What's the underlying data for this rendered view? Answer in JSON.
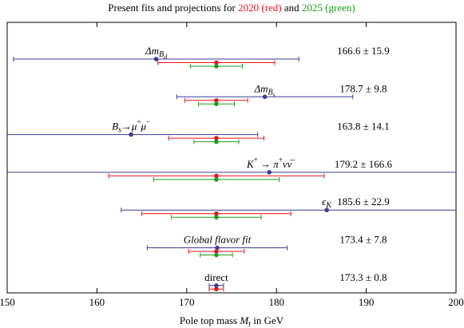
{
  "chart_data": {
    "type": "errorbar",
    "title": [
      {
        "text": "Present fits and projections for ",
        "color": "#000000"
      },
      {
        "text": "2020 (red)",
        "color": "#e8141c"
      },
      {
        "text": " and ",
        "color": "#000000"
      },
      {
        "text": "2025 (green)",
        "color": "#1a9e1a"
      }
    ],
    "categories": [
      [
        {
          "text": "Δm",
          "italic": true
        },
        {
          "text": "B",
          "italic": true,
          "shift": "sub"
        },
        {
          "text": "d",
          "italic": true,
          "shift": "subsub"
        }
      ],
      [
        {
          "text": "Δm",
          "italic": true
        },
        {
          "text": "B",
          "italic": true,
          "shift": "sub"
        },
        {
          "text": "s",
          "italic": true,
          "shift": "subsub"
        }
      ],
      [
        {
          "text": "B",
          "italic": true
        },
        {
          "text": "s",
          "italic": true,
          "shift": "sub"
        },
        {
          "text": "→μ",
          "italic": true
        },
        {
          "text": "+",
          "shift": "sup"
        },
        {
          "text": "μ",
          "italic": true
        },
        {
          "text": "−",
          "shift": "sup"
        }
      ],
      [
        {
          "text": "K",
          "italic": true
        },
        {
          "text": "+",
          "shift": "sup"
        },
        {
          "text": " → π",
          "italic": true
        },
        {
          "text": "+",
          "shift": "sup"
        },
        {
          "text": "νν̅",
          "italic": true
        }
      ],
      [
        {
          "text": "ϵ",
          "italic": true
        },
        {
          "text": "K",
          "italic": true,
          "shift": "sub"
        }
      ],
      [
        {
          "text": "Global flavor fit",
          "italic": true
        }
      ],
      [
        {
          "text": "direct"
        }
      ]
    ],
    "series": [
      {
        "color": "#3c3c9c",
        "values": [
          166.6,
          178.7,
          163.8,
          179.2,
          185.6,
          173.4,
          173.3
        ],
        "errors": [
          15.9,
          9.8,
          14.1,
          166.6,
          22.9,
          7.8,
          0.8
        ],
        "value_labels": [
          "166.6 ± 15.9",
          "178.7 ± 9.8",
          "163.8 ± 14.1",
          "179.2 ± 166.6",
          "185.6 ± 22.9",
          "173.4 ± 7.8",
          "173.3 ± 0.8"
        ]
      },
      {
        "color": "#e8141c",
        "values": [
          173.3,
          173.3,
          173.3,
          173.3,
          173.3,
          173.3,
          173.3
        ],
        "errors": [
          6.5,
          3.5,
          5.3,
          12,
          8.3,
          3.1,
          0.8
        ]
      },
      {
        "color": "#1a9e1a",
        "values": [
          173.3,
          173.3,
          173.3,
          173.3,
          173.3,
          173.3,
          null
        ],
        "errors": [
          2.9,
          2,
          2.5,
          7,
          5,
          1.8,
          null
        ]
      }
    ],
    "xlim": [
      150,
      200
    ],
    "xticks": [
      150,
      160,
      170,
      180,
      190,
      200
    ],
    "xlabel": [
      {
        "text": "Pole top mass "
      },
      {
        "text": "M",
        "italic": true
      },
      {
        "text": "t",
        "italic": true,
        "shift": "sub"
      },
      {
        "text": " in GeV"
      }
    ]
  }
}
